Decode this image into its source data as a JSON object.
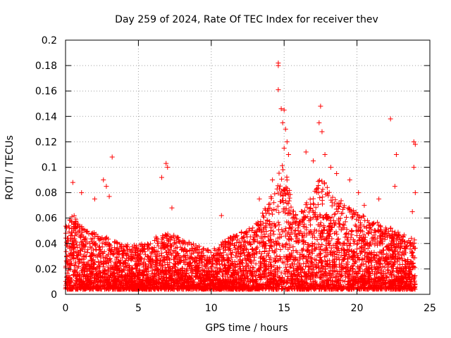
{
  "chart_data": {
    "type": "scatter",
    "title": "Day 259 of 2024, Rate Of TEC Index for receiver thev",
    "xlabel": "GPS time / hours",
    "ylabel": "ROTI / TECUs",
    "xlim": [
      0,
      25
    ],
    "ylim": [
      0,
      0.2
    ],
    "x_ticks": [
      0,
      5,
      10,
      15,
      20,
      25
    ],
    "x_tick_labels": [
      "0",
      "5",
      "10",
      "15",
      "20",
      "25"
    ],
    "y_ticks": [
      0,
      0.02,
      0.04,
      0.06,
      0.08,
      0.1,
      0.12,
      0.14,
      0.16,
      0.18,
      0.2
    ],
    "y_tick_labels": [
      "0",
      "0.02",
      "0.04",
      "0.06",
      "0.08",
      "0.1",
      "0.12",
      "0.14",
      "0.16",
      "0.18",
      "0.2"
    ],
    "grid": true,
    "marker": "+",
    "color": "#ff0000",
    "series": [
      {
        "name": "ROTI",
        "envelope_x": [
          0,
          0.5,
          1,
          2,
          3,
          4,
          5,
          6,
          7,
          8,
          9,
          10,
          11,
          12,
          13,
          14,
          14.5,
          15,
          15.5,
          16,
          17,
          17.5,
          18,
          19,
          20,
          21,
          22,
          23,
          24
        ],
        "envelope_y": [
          0.05,
          0.06,
          0.05,
          0.045,
          0.04,
          0.035,
          0.035,
          0.04,
          0.045,
          0.04,
          0.035,
          0.03,
          0.04,
          0.045,
          0.05,
          0.07,
          0.09,
          0.1,
          0.07,
          0.06,
          0.075,
          0.09,
          0.08,
          0.07,
          0.06,
          0.055,
          0.05,
          0.045,
          0.04
        ],
        "outliers": [
          [
            0.5,
            0.088
          ],
          [
            1.1,
            0.08
          ],
          [
            2.0,
            0.075
          ],
          [
            2.6,
            0.09
          ],
          [
            2.8,
            0.085
          ],
          [
            3.2,
            0.108
          ],
          [
            3.0,
            0.077
          ],
          [
            6.6,
            0.092
          ],
          [
            6.9,
            0.103
          ],
          [
            7.0,
            0.1
          ],
          [
            7.3,
            0.068
          ],
          [
            10.7,
            0.062
          ],
          [
            13.3,
            0.075
          ],
          [
            14.2,
            0.09
          ],
          [
            14.6,
            0.182
          ],
          [
            14.6,
            0.18
          ],
          [
            14.6,
            0.161
          ],
          [
            14.8,
            0.146
          ],
          [
            15.0,
            0.145
          ],
          [
            14.9,
            0.135
          ],
          [
            15.1,
            0.13
          ],
          [
            15.2,
            0.12
          ],
          [
            15.3,
            0.11
          ],
          [
            15.0,
            0.115
          ],
          [
            16.5,
            0.112
          ],
          [
            17.0,
            0.105
          ],
          [
            17.5,
            0.148
          ],
          [
            17.4,
            0.135
          ],
          [
            17.6,
            0.128
          ],
          [
            17.8,
            0.11
          ],
          [
            18.2,
            0.1
          ],
          [
            18.6,
            0.095
          ],
          [
            19.5,
            0.09
          ],
          [
            20.1,
            0.08
          ],
          [
            20.5,
            0.07
          ],
          [
            21.5,
            0.075
          ],
          [
            22.3,
            0.138
          ],
          [
            22.7,
            0.11
          ],
          [
            22.6,
            0.085
          ],
          [
            23.9,
            0.12
          ],
          [
            24.0,
            0.118
          ],
          [
            23.9,
            0.1
          ],
          [
            24.0,
            0.08
          ],
          [
            23.8,
            0.065
          ]
        ]
      }
    ]
  }
}
